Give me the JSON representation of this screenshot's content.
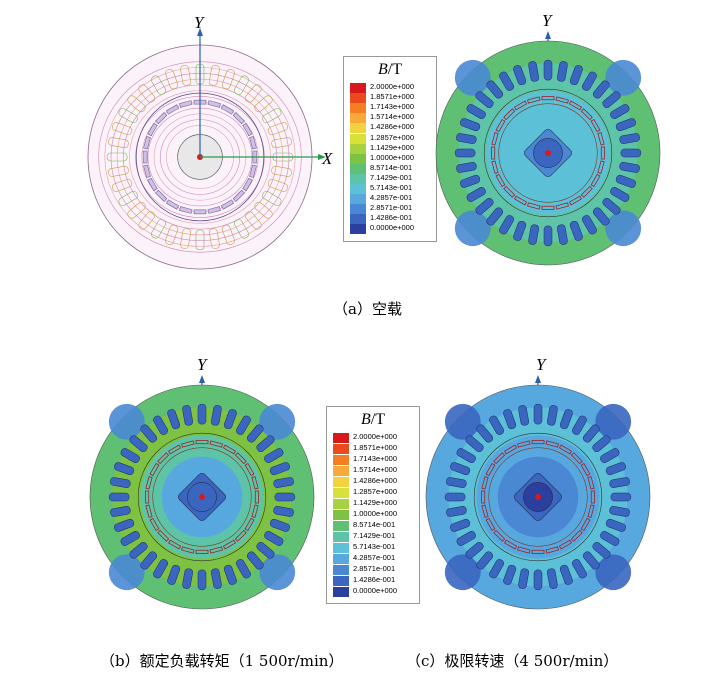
{
  "legend": {
    "title_italic": "B",
    "title_unit": "/T",
    "levels": [
      {
        "value": "2.0000e+000",
        "color": "#d7191c"
      },
      {
        "value": "1.8571e+000",
        "color": "#ea4a1e"
      },
      {
        "value": "1.7143e+000",
        "color": "#f57d22"
      },
      {
        "value": "1.5714e+000",
        "color": "#f8a93a"
      },
      {
        "value": "1.4286e+000",
        "color": "#f2d23e"
      },
      {
        "value": "1.2857e+000",
        "color": "#d8e03a"
      },
      {
        "value": "1.1429e+000",
        "color": "#a8d13f"
      },
      {
        "value": "1.0000e+000",
        "color": "#7dc243"
      },
      {
        "value": "8.5714e-001",
        "color": "#5fbf73"
      },
      {
        "value": "7.1429e-001",
        "color": "#5ec4a8"
      },
      {
        "value": "5.7143e-001",
        "color": "#5cc0d6"
      },
      {
        "value": "4.2857e-001",
        "color": "#58a8e0"
      },
      {
        "value": "2.8571e-001",
        "color": "#4a88d4"
      },
      {
        "value": "1.4286e-001",
        "color": "#3a66bf"
      },
      {
        "value": "0.0000e+000",
        "color": "#2b3f9e"
      }
    ]
  },
  "axes": {
    "x": "X",
    "y": "Y"
  },
  "captions": {
    "a": "（a）空载",
    "b": "（b）额定负载转矩（1 500r/min）",
    "c": "（c）极限转速（4 500r/min）"
  }
}
